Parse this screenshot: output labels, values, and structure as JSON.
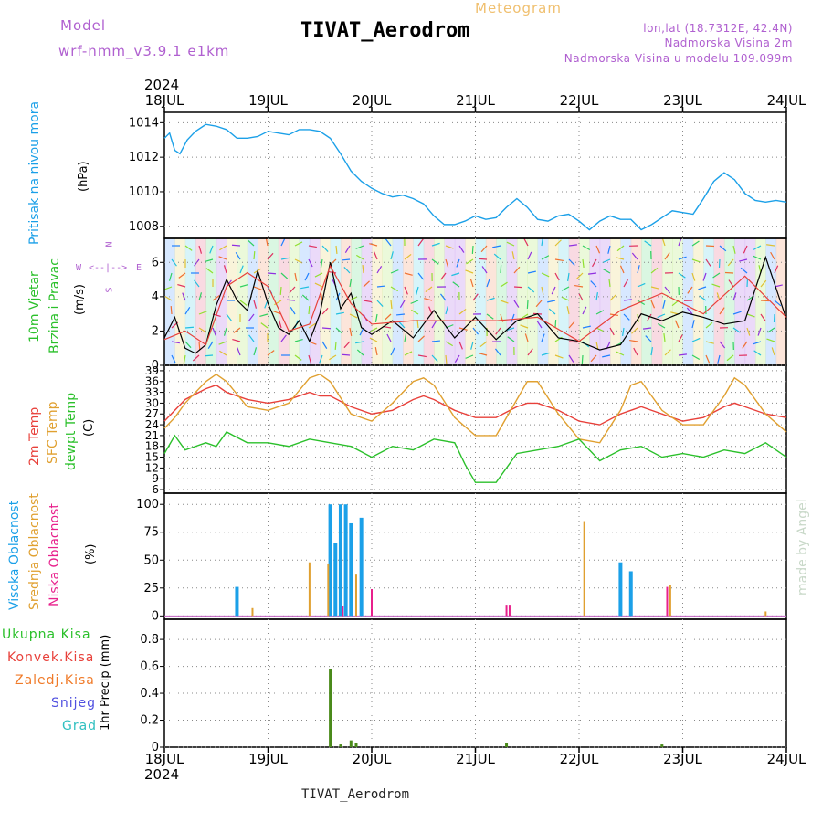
{
  "header": {
    "model_label": "Model",
    "model_name": "wrf-nmm_v3.9.1 e1km",
    "product": "Meteogram",
    "station": "TIVAT_Aerodrom",
    "lonlat": "lon,lat (18.7312E, 42.4N)",
    "elevation": "Nadmorska Visina 2m",
    "model_elevation": "Nadmorska Visina u modelu 109.099m",
    "footer_station": "TIVAT_Aerodrom",
    "credit": "made by Angel",
    "year": "2024"
  },
  "colors": {
    "pressure": "#1ba0e8",
    "temp2m": "#e8403a",
    "sfc_temp": "#e0a030",
    "dewpoint": "#2bc02b",
    "high_cloud": "#1ba0e8",
    "mid_cloud": "#e0a030",
    "low_cloud": "#e8208c",
    "precip_total": "#4a8a1a",
    "model_text": "#b060d0"
  },
  "icons": {
    "compass_rose": "compass-rose-icon"
  },
  "chart_data": [
    {
      "type": "line",
      "panel": "pressure",
      "ylabel": [
        "Pritisak na nivou mora",
        "(hPa)"
      ],
      "x_ticks": [
        "18JUL",
        "19JUL",
        "20JUL",
        "21JUL",
        "22JUL",
        "23JUL",
        "24JUL"
      ],
      "ylim": [
        1007.3,
        1014.6
      ],
      "y_ticks": [
        1008,
        1010,
        1012,
        1014
      ],
      "x_range_days": [
        0,
        6
      ],
      "series": [
        {
          "x": [
            0,
            0.05,
            0.1,
            0.15,
            0.22,
            0.3,
            0.4,
            0.5,
            0.6,
            0.7,
            0.8,
            0.9,
            1.0,
            1.1,
            1.2,
            1.3,
            1.4,
            1.5,
            1.6,
            1.7,
            1.8,
            1.9,
            2.0,
            2.1,
            2.2,
            2.3,
            2.4,
            2.5,
            2.6,
            2.7,
            2.8,
            2.9,
            3.0,
            3.1,
            3.2,
            3.3,
            3.4,
            3.5,
            3.6,
            3.7,
            3.8,
            3.9,
            4.0,
            4.1,
            4.2,
            4.3,
            4.4,
            4.5,
            4.6,
            4.7,
            4.8,
            4.9,
            5.0,
            5.1,
            5.2,
            5.3,
            5.4,
            5.5,
            5.6,
            5.7,
            5.8,
            5.9,
            6.0
          ],
          "y": [
            1013.1,
            1013.4,
            1012.4,
            1012.2,
            1013.0,
            1013.5,
            1013.9,
            1013.8,
            1013.6,
            1013.1,
            1013.1,
            1013.2,
            1013.5,
            1013.4,
            1013.3,
            1013.6,
            1013.6,
            1013.5,
            1013.1,
            1012.2,
            1011.2,
            1010.6,
            1010.2,
            1009.9,
            1009.7,
            1009.8,
            1009.6,
            1009.3,
            1008.6,
            1008.1,
            1008.1,
            1008.3,
            1008.6,
            1008.4,
            1008.5,
            1009.1,
            1009.6,
            1009.1,
            1008.4,
            1008.3,
            1008.6,
            1008.7,
            1008.3,
            1007.8,
            1008.3,
            1008.6,
            1008.4,
            1008.4,
            1007.8,
            1008.1,
            1008.5,
            1008.9,
            1008.8,
            1008.7,
            1009.6,
            1010.6,
            1011.1,
            1010.7,
            1009.9,
            1009.5,
            1009.4,
            1009.5,
            1009.4
          ],
          "name": ""
        }
      ]
    },
    {
      "type": "line",
      "panel": "wind",
      "ylabel": [
        "10m Vjetar",
        "Brzina i Pravac",
        "(m/s)"
      ],
      "ylim": [
        0,
        7.4
      ],
      "y_ticks": [
        0,
        2,
        4,
        6
      ],
      "compass": {
        "north": "N",
        "south": "S",
        "west": "W",
        "east": "E"
      },
      "series": [
        {
          "name": "",
          "x": [
            0,
            0.1,
            0.2,
            0.3,
            0.4,
            0.5,
            0.6,
            0.7,
            0.8,
            0.9,
            1.0,
            1.1,
            1.2,
            1.3,
            1.4,
            1.5,
            1.6,
            1.7,
            1.8,
            1.9,
            2.0,
            2.2,
            2.4,
            2.6,
            2.8,
            3.0,
            3.2,
            3.4,
            3.6,
            3.8,
            4.0,
            4.2,
            4.4,
            4.6,
            4.8,
            5.0,
            5.2,
            5.4,
            5.6,
            5.8,
            6.0
          ],
          "y": [
            1.6,
            2.8,
            1.0,
            0.7,
            1.2,
            3.5,
            5.0,
            3.8,
            3.2,
            5.5,
            3.6,
            2.2,
            1.8,
            2.6,
            1.4,
            3.0,
            6.0,
            3.3,
            4.2,
            2.2,
            1.8,
            2.6,
            1.6,
            3.2,
            1.6,
            2.8,
            1.5,
            2.6,
            3.0,
            1.6,
            1.4,
            0.9,
            1.2,
            3.0,
            2.6,
            3.1,
            2.8,
            2.4,
            2.6,
            6.3,
            2.7
          ]
        },
        {
          "name": "",
          "x": [
            0,
            0.2,
            0.4,
            0.6,
            0.8,
            1.0,
            1.2,
            1.4,
            1.6,
            1.8,
            2.0,
            2.4,
            2.8,
            3.2,
            3.6,
            4.0,
            4.4,
            4.8,
            5.2,
            5.6,
            6.0
          ],
          "y": [
            1.5,
            2.0,
            1.2,
            4.6,
            5.4,
            4.6,
            2.0,
            2.4,
            5.8,
            3.6,
            2.4,
            2.6,
            2.6,
            2.6,
            2.8,
            1.4,
            3.2,
            4.2,
            3.0,
            5.2,
            2.8
          ]
        }
      ]
    },
    {
      "type": "line",
      "panel": "temperature",
      "ylabel": [
        "2m Temp",
        "SFC Temp",
        "dewpt Temp",
        "(C)"
      ],
      "ylim": [
        5,
        40.5
      ],
      "y_ticks": [
        6,
        9,
        12,
        15,
        18,
        21,
        24,
        27,
        30,
        33,
        36,
        39
      ],
      "series": [
        {
          "name": "2m Temp",
          "x": [
            0,
            0.2,
            0.4,
            0.5,
            0.6,
            0.8,
            1.0,
            1.2,
            1.4,
            1.5,
            1.6,
            1.8,
            2.0,
            2.2,
            2.4,
            2.5,
            2.6,
            2.8,
            3.0,
            3.2,
            3.4,
            3.5,
            3.6,
            3.8,
            4.0,
            4.2,
            4.4,
            4.5,
            4.6,
            4.8,
            5.0,
            5.2,
            5.4,
            5.5,
            5.6,
            5.8,
            6.0
          ],
          "y": [
            25,
            31,
            34,
            35,
            33,
            31,
            30,
            31,
            33,
            32,
            32,
            29,
            27,
            28,
            31,
            32,
            31,
            28,
            26,
            26,
            29,
            30,
            30,
            28,
            25,
            24,
            27,
            28,
            29,
            27,
            25,
            26,
            29,
            30,
            29,
            27,
            26
          ]
        },
        {
          "name": "SFC Temp",
          "x": [
            0,
            0.1,
            0.2,
            0.4,
            0.5,
            0.6,
            0.8,
            1.0,
            1.2,
            1.4,
            1.5,
            1.6,
            1.8,
            2.0,
            2.2,
            2.4,
            2.5,
            2.6,
            2.8,
            3.0,
            3.2,
            3.4,
            3.5,
            3.6,
            3.8,
            4.0,
            4.2,
            4.4,
            4.5,
            4.6,
            4.8,
            5.0,
            5.2,
            5.4,
            5.5,
            5.6,
            5.8,
            6.0
          ],
          "y": [
            23,
            26,
            30,
            36,
            38,
            36,
            29,
            28,
            30,
            37,
            38,
            36,
            27,
            25,
            30,
            36,
            37,
            35,
            26,
            21,
            21,
            31,
            36,
            36,
            27,
            20,
            19,
            28,
            35,
            36,
            28,
            24,
            24,
            32,
            37,
            35,
            27,
            22
          ]
        },
        {
          "name": "dewpt Temp",
          "x": [
            0,
            0.1,
            0.2,
            0.3,
            0.4,
            0.5,
            0.6,
            0.8,
            1.0,
            1.2,
            1.4,
            1.6,
            1.8,
            2.0,
            2.2,
            2.4,
            2.6,
            2.8,
            2.9,
            3.0,
            3.2,
            3.4,
            3.6,
            3.8,
            4.0,
            4.2,
            4.4,
            4.6,
            4.8,
            5.0,
            5.2,
            5.4,
            5.6,
            5.8,
            6.0
          ],
          "y": [
            16,
            21,
            17,
            18,
            19,
            18,
            22,
            19,
            19,
            18,
            20,
            19,
            18,
            15,
            18,
            17,
            20,
            19,
            13,
            8,
            8,
            16,
            17,
            18,
            20,
            14,
            17,
            18,
            15,
            16,
            15,
            17,
            16,
            19,
            15
          ]
        }
      ]
    },
    {
      "type": "bar",
      "panel": "cloud",
      "ylabel": [
        "Visoka Oblacnost",
        "Srednja Oblacnost",
        "Niska Oblacnost",
        "(%)"
      ],
      "ylim": [
        -3,
        110
      ],
      "y_ticks": [
        0,
        25,
        50,
        75,
        100
      ],
      "series": [
        {
          "name": "Visoka Oblacnost",
          "x": [
            0.7,
            1.6,
            1.65,
            1.7,
            1.75,
            1.8,
            1.9,
            4.4,
            4.5
          ],
          "values": [
            26,
            100,
            65,
            100,
            100,
            83,
            88,
            48,
            40
          ]
        },
        {
          "name": "Srednja Oblacnost",
          "x": [
            0.85,
            1.4,
            1.58,
            1.85,
            4.05,
            4.88,
            5.8
          ],
          "values": [
            7,
            48,
            47,
            37,
            85,
            28,
            4
          ]
        },
        {
          "name": "Niska Oblacnost",
          "x": [
            1.72,
            2.0,
            3.3,
            3.33,
            4.85
          ],
          "values": [
            9,
            24,
            10,
            10,
            26
          ]
        }
      ]
    },
    {
      "type": "bar",
      "panel": "precip",
      "ylabel": [
        "1hr Precip (mm)"
      ],
      "legend": [
        "Ukupna Kisa",
        "Konvek.Kisa",
        "Zaledj.Kisa",
        "Snijeg",
        "Grad"
      ],
      "legend_colors": [
        "#2bc02b",
        "#e8403a",
        "#f07a28",
        "#5050e0",
        "#30c0c0"
      ],
      "ylim": [
        0,
        0.95
      ],
      "y_ticks": [
        0,
        0.2,
        0.4,
        0.6,
        0.8
      ],
      "x_ticks": [
        "18JUL",
        "19JUL",
        "20JUL",
        "21JUL",
        "22JUL",
        "23JUL",
        "24JUL"
      ],
      "series": [
        {
          "name": "Ukupna Kisa",
          "x": [
            1.6,
            1.7,
            1.8,
            1.85,
            3.3,
            4.8
          ],
          "values": [
            0.58,
            0.02,
            0.05,
            0.03,
            0.03,
            0.02
          ]
        }
      ]
    }
  ]
}
